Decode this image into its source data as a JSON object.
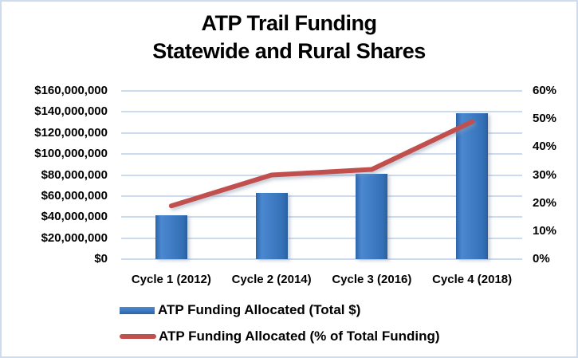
{
  "window": {
    "background_color": "#ffffff",
    "border_color": "#cddcef"
  },
  "title": {
    "line1": "ATP Trail Funding",
    "line2": "Statewide and Rural Shares"
  },
  "legend": [
    {
      "swatch": "bar-swatch",
      "label": "ATP Funding Allocated (Total $)",
      "color": "#3b76bf"
    },
    {
      "swatch": "line-swatch",
      "label": "ATP Funding Allocated (% of Total Funding)",
      "color": "#c0504d"
    }
  ],
  "chart_data": {
    "type": "combo",
    "title": "ATP Trail Funding — Statewide and Rural Shares",
    "categories": [
      "Cycle 1 (2012)",
      "Cycle 2 (2014)",
      "Cycle 3 (2016)",
      "Cycle 4 (2018)"
    ],
    "series": [
      {
        "name": "ATP Funding Allocated (Total $)",
        "type": "bar",
        "axis": "left",
        "values": [
          42000000,
          63000000,
          81000000,
          139000000
        ],
        "color": "#3b76bf"
      },
      {
        "name": "ATP Funding Allocated (% of Total Funding)",
        "type": "line",
        "axis": "right",
        "values": [
          19,
          30,
          32,
          49
        ],
        "color": "#c0504d"
      }
    ],
    "left_axis": {
      "min": 0,
      "max": 160000000,
      "step": 20000000,
      "tick_labels": [
        "$160,000,000",
        "$140,000,000",
        "$120,000,000",
        "$100,000,000",
        "$80,000,000",
        "$60,000,000",
        "$40,000,000",
        "$20,000,000",
        "$0"
      ]
    },
    "right_axis": {
      "min": 0,
      "max": 60,
      "step": 10,
      "tick_labels": [
        "60%",
        "50%",
        "40%",
        "30%",
        "20%",
        "10%",
        "0%"
      ]
    },
    "grid": true,
    "gridline_color": "#cbdaee",
    "legend_position": "bottom-left"
  }
}
